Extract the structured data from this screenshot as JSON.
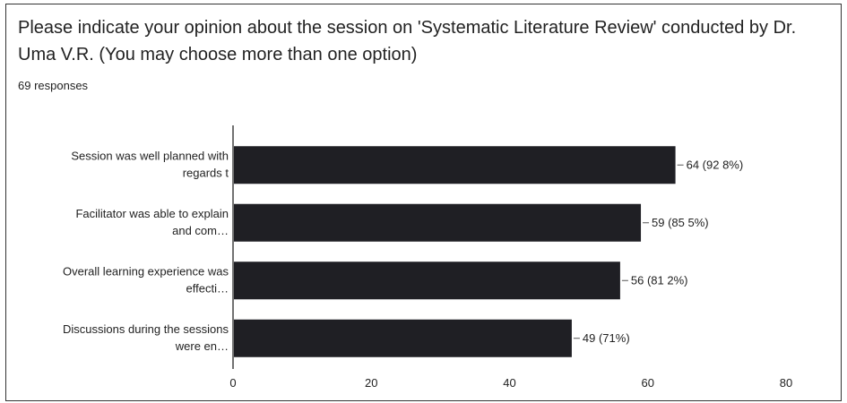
{
  "form": {
    "question": "Please indicate your opinion about the session on 'Systematic Literature Review' conducted by Dr. Uma V.R. (You may choose more than one option)",
    "responses": "69 responses"
  },
  "colors": {
    "bar": "#1f1f24",
    "axis": "#444444"
  },
  "chart_data": {
    "type": "bar",
    "orientation": "horizontal",
    "categories": [
      [
        "Session was well planned with",
        "regards t"
      ],
      [
        "Facilitator was able to explain",
        "and com…"
      ],
      [
        "Overall learning experience was",
        "effecti…"
      ],
      [
        "Discussions during the sessions",
        "were en…"
      ]
    ],
    "values": [
      64,
      59,
      56,
      49
    ],
    "data_labels": [
      "64 (92 8%)",
      "59 (85 5%)",
      "56 (81 2%)",
      "49 (71%)"
    ],
    "xlim": [
      0,
      80
    ],
    "xticks": [
      0,
      20,
      40,
      60,
      80
    ],
    "grid": false
  }
}
